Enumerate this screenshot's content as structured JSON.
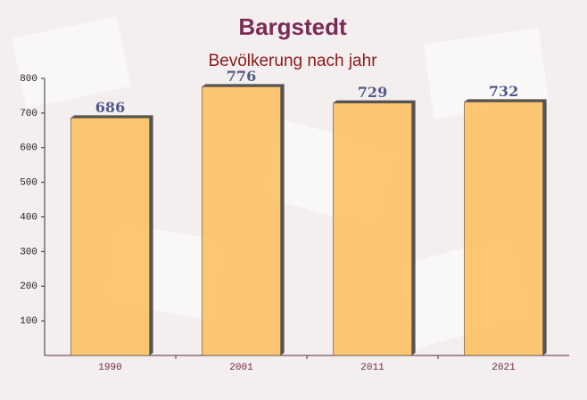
{
  "chart_data": {
    "type": "bar",
    "title": "Bargstedt",
    "subtitle": "Bevölkerung nach jahr",
    "categories": [
      "1990",
      "2001",
      "2011",
      "2021"
    ],
    "values": [
      686,
      776,
      729,
      732
    ],
    "color": "#fdc063",
    "ylim": [
      0,
      800
    ],
    "yticks": [
      100,
      200,
      300,
      400,
      500,
      600,
      700,
      800
    ]
  }
}
